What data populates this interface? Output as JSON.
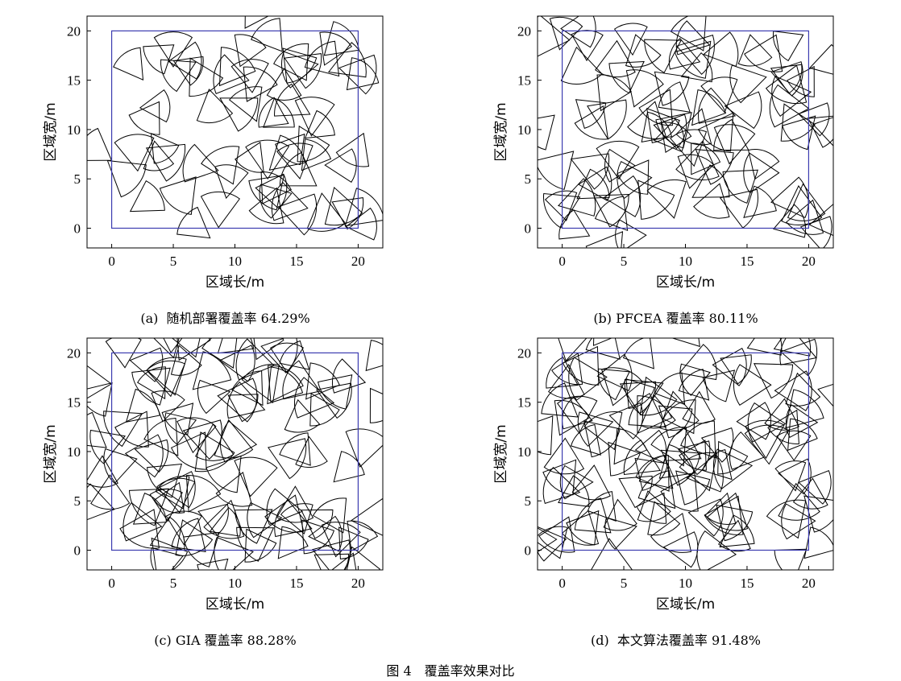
{
  "figure_caption": "图 4　覆盖率效果对比",
  "colors": {
    "region": "#3b3bb0",
    "sector": "#000000",
    "axes": "#000000"
  },
  "chart_data": [
    {
      "type": "scatter",
      "label": "(a)",
      "caption": "随机部署覆盖率 64.29%",
      "coverage_percent": 64.29,
      "xlabel": "区域长/m",
      "ylabel": "区域宽/m",
      "xlim": [
        -2,
        22
      ],
      "ylim": [
        -2,
        21.5
      ],
      "xticks": [
        0,
        5,
        10,
        15,
        20
      ],
      "yticks": [
        0,
        5,
        10,
        15,
        20
      ],
      "region": [
        0,
        0,
        20,
        20
      ]
    },
    {
      "type": "scatter",
      "label": "(b)",
      "caption": "PFCEA 覆盖率 80.11%",
      "coverage_percent": 80.11,
      "xlabel": "区域长/m",
      "ylabel": "区域宽/m",
      "xlim": [
        -2,
        22
      ],
      "ylim": [
        -2,
        21.5
      ],
      "xticks": [
        0,
        5,
        10,
        15,
        20
      ],
      "yticks": [
        0,
        5,
        10,
        15,
        20
      ],
      "region": [
        0,
        0,
        20,
        20
      ]
    },
    {
      "type": "scatter",
      "label": "(c)",
      "caption": "GIA 覆盖率 88.28%",
      "coverage_percent": 88.28,
      "xlabel": "区域长/m",
      "ylabel": "区域宽/m",
      "xlim": [
        -2,
        22
      ],
      "ylim": [
        -2,
        21.5
      ],
      "xticks": [
        0,
        5,
        10,
        15,
        20
      ],
      "yticks": [
        0,
        5,
        10,
        15,
        20
      ],
      "region": [
        0,
        0,
        20,
        20
      ]
    },
    {
      "type": "scatter",
      "label": "(d)",
      "caption": "本文算法覆盖率 91.48%",
      "coverage_percent": 91.48,
      "xlabel": "区域长/m",
      "ylabel": "区域宽/m",
      "xlim": [
        -2,
        22
      ],
      "ylim": [
        -2,
        21.5
      ],
      "xticks": [
        0,
        5,
        10,
        15,
        20
      ],
      "yticks": [
        0,
        5,
        10,
        15,
        20
      ],
      "region": [
        0,
        0,
        20,
        20
      ]
    }
  ]
}
